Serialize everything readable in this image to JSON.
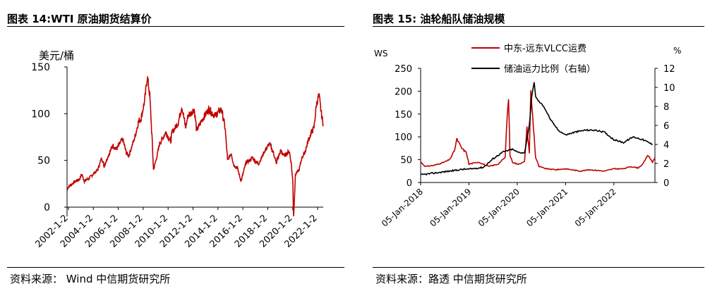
{
  "panels": {
    "left": {
      "title": "图表 14:WTI 原油期货结算价",
      "source": "资料来源：  Wind  中信期货研究所"
    },
    "right": {
      "title": "图表 15:  油轮船队储油规模",
      "source": "资料来源：路透  中信期货研究所"
    }
  },
  "colors": {
    "red": "#c00000",
    "black": "#000000",
    "axis": "#000000"
  },
  "chart_data": [
    {
      "type": "line",
      "title": "",
      "ylabel": "美元/桶",
      "ylim": [
        -10,
        150
      ],
      "y_ticks": [
        0,
        50,
        100,
        150
      ],
      "x_tick_labels": [
        "2002-1-2",
        "2004-1-2",
        "2006-1-2",
        "2008-1-2",
        "2010-1-2",
        "2012-1-2",
        "2014-1-2",
        "2016-1-2",
        "2018-1-2",
        "2020-1-2",
        "2022-1-2"
      ],
      "x_range": [
        2002.0,
        2022.75
      ],
      "grid": false,
      "series": [
        {
          "color": "#c00000",
          "x": [
            2002.0,
            2002.5,
            2003.0,
            2003.2,
            2003.4,
            2003.8,
            2004.0,
            2004.5,
            2004.8,
            2005.0,
            2005.5,
            2005.7,
            2006.0,
            2006.5,
            2006.8,
            2007.0,
            2007.5,
            2007.8,
            2008.0,
            2008.3,
            2008.5,
            2008.7,
            2008.9,
            2009.0,
            2009.2,
            2009.5,
            2009.8,
            2010.0,
            2010.4,
            2010.5,
            2011.0,
            2011.3,
            2011.6,
            2011.8,
            2012.0,
            2012.3,
            2012.5,
            2012.8,
            2013.0,
            2013.5,
            2013.8,
            2014.0,
            2014.5,
            2014.8,
            2015.0,
            2015.3,
            2015.5,
            2015.8,
            2016.0,
            2016.1,
            2016.5,
            2016.8,
            2017.0,
            2017.5,
            2018.0,
            2018.4,
            2018.8,
            2018.95,
            2019.0,
            2019.3,
            2019.6,
            2020.0,
            2020.15,
            2020.3,
            2020.32,
            2020.35,
            2020.5,
            2020.8,
            2021.0,
            2021.3,
            2021.5,
            2021.8,
            2022.0,
            2022.2,
            2022.4,
            2022.5,
            2022.6,
            2022.75
          ],
          "y": [
            20,
            26,
            30,
            35,
            28,
            31,
            34,
            40,
            53,
            44,
            60,
            66,
            62,
            73,
            58,
            55,
            75,
            92,
            95,
            115,
            140,
            120,
            70,
            40,
            50,
            68,
            75,
            80,
            70,
            80,
            90,
            108,
            85,
            98,
            100,
            105,
            82,
            90,
            95,
            105,
            100,
            98,
            105,
            85,
            50,
            58,
            45,
            42,
            32,
            28,
            48,
            50,
            53,
            46,
            60,
            68,
            55,
            46,
            50,
            60,
            55,
            60,
            48,
            25,
            0,
            -10,
            35,
            40,
            52,
            60,
            70,
            80,
            85,
            110,
            120,
            110,
            100,
            88
          ]
        }
      ]
    },
    {
      "type": "line",
      "title": "",
      "ylabel": "WS",
      "y2label": "%",
      "ylim": [
        0,
        250
      ],
      "y2lim": [
        0,
        12
      ],
      "y_ticks": [
        0,
        50,
        100,
        150,
        200,
        250
      ],
      "y2_ticks": [
        0,
        2,
        4,
        6,
        8,
        10,
        12
      ],
      "x_tick_labels": [
        "05-Jan-2018",
        "05-Jan-2019",
        "05-Jan-2020",
        "05-Jan-2021",
        "05-Jan-2022"
      ],
      "x_range": [
        2018.0,
        2022.85
      ],
      "legend": "top",
      "grid": false,
      "series": [
        {
          "name": "中东-远东VLCC运费",
          "color": "#c00000",
          "axis": "left",
          "x": [
            2018.0,
            2018.1,
            2018.3,
            2018.5,
            2018.6,
            2018.7,
            2018.75,
            2018.85,
            2018.95,
            2019.0,
            2019.2,
            2019.4,
            2019.6,
            2019.75,
            2019.78,
            2019.82,
            2019.85,
            2019.9,
            2020.0,
            2020.15,
            2020.2,
            2020.25,
            2020.28,
            2020.32,
            2020.38,
            2020.45,
            2020.6,
            2020.8,
            2021.0,
            2021.3,
            2021.5,
            2021.8,
            2022.0,
            2022.2,
            2022.35,
            2022.5,
            2022.6,
            2022.7,
            2022.8,
            2022.85
          ],
          "y": [
            45,
            35,
            38,
            45,
            50,
            70,
            95,
            75,
            65,
            40,
            45,
            35,
            40,
            55,
            125,
            185,
            60,
            45,
            40,
            45,
            120,
            65,
            200,
            145,
            55,
            35,
            30,
            28,
            30,
            25,
            28,
            25,
            30,
            30,
            35,
            32,
            40,
            60,
            45,
            55
          ]
        },
        {
          "name": "储油运力比例（右轴）",
          "color": "#000000",
          "axis": "right",
          "x": [
            2018.0,
            2018.3,
            2018.6,
            2018.9,
            2019.0,
            2019.3,
            2019.5,
            2019.7,
            2019.9,
            2020.0,
            2020.15,
            2020.25,
            2020.3,
            2020.35,
            2020.38,
            2020.45,
            2020.55,
            2020.7,
            2020.85,
            2021.0,
            2021.2,
            2021.4,
            2021.6,
            2021.8,
            2022.0,
            2022.2,
            2022.4,
            2022.6,
            2022.8
          ],
          "y": [
            0.8,
            1.0,
            1.2,
            1.4,
            1.4,
            1.6,
            2.5,
            3.2,
            3.5,
            3.2,
            3.1,
            6.0,
            9.0,
            10.6,
            9.0,
            8.5,
            8.0,
            6.5,
            5.5,
            5.0,
            5.3,
            5.5,
            5.5,
            5.3,
            4.5,
            4.2,
            4.8,
            4.5,
            4.0
          ]
        }
      ]
    }
  ]
}
